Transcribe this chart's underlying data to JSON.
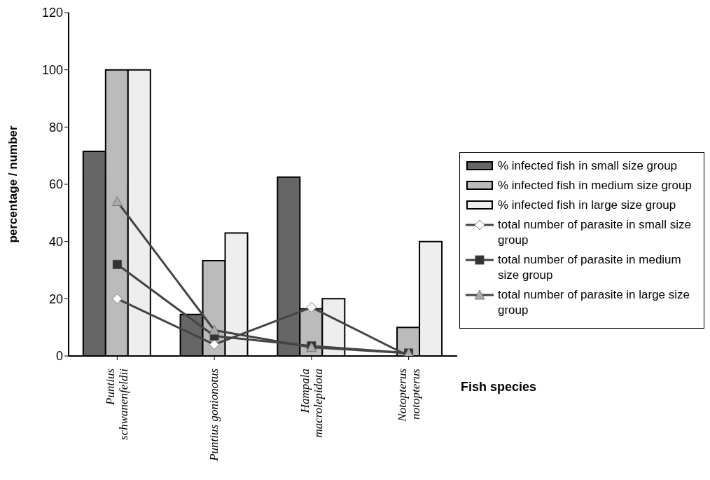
{
  "chart_data": {
    "type": "bar",
    "xlabel": "Fish species",
    "ylabel": "percentage / number",
    "categories": [
      "Puntius schwanenfeldii",
      "Puntius gonionotus",
      "Hampala macrolepidota",
      "Notopterus notopterus"
    ],
    "series": [
      {
        "name": "% infected fish in small size group",
        "color": "#666666",
        "values": [
          71.5,
          14.5,
          62.5,
          0
        ]
      },
      {
        "name": "% infected fish in medium size group",
        "color": "#bbbbbb",
        "values": [
          100,
          33.3,
          16.5,
          10
        ]
      },
      {
        "name": "% infected fish in large size group",
        "color": "#eeeeee",
        "values": [
          100,
          43,
          20,
          40
        ]
      },
      {
        "name": "total number of parasite in small size group",
        "type": "line",
        "marker": "diamond",
        "color": "#444444",
        "values": [
          20,
          4,
          17,
          0
        ]
      },
      {
        "name": "total number of parasite in medium size group",
        "type": "line",
        "marker": "square",
        "color": "#444444",
        "values": [
          32,
          7,
          3.5,
          1
        ]
      },
      {
        "name": "total number of parasite in large size group",
        "type": "line",
        "marker": "triangle",
        "color": "#444444",
        "values": [
          54,
          9,
          3,
          1
        ]
      }
    ],
    "ylim": [
      0,
      120
    ],
    "yticks": [
      0,
      20,
      40,
      60,
      80,
      100,
      120
    ],
    "legend": "right"
  }
}
